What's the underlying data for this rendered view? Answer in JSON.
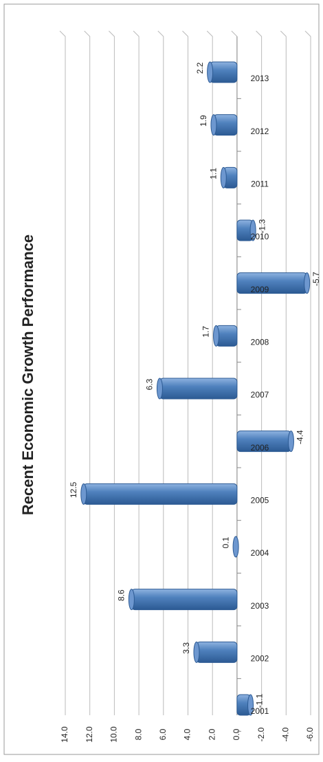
{
  "chart_data": {
    "type": "bar",
    "orientation": "rotated",
    "title": "Recent Economic Growth Performance",
    "categories": [
      "2001",
      "2002",
      "2003",
      "2004",
      "2005",
      "2006",
      "2007",
      "2008",
      "2009",
      "2010",
      "2011",
      "2012",
      "2013"
    ],
    "values": [
      -1.1,
      3.3,
      8.6,
      0.1,
      12.5,
      -4.4,
      6.3,
      1.7,
      -5.7,
      -1.3,
      1.1,
      1.9,
      2.2
    ],
    "color": "#4f81bd",
    "ylim": [
      -6,
      14
    ],
    "yticks": [
      {
        "value": -6,
        "label": "-6.0"
      },
      {
        "value": -4,
        "label": "-4.0"
      },
      {
        "value": -2,
        "label": "-2.0"
      },
      {
        "value": 0,
        "label": "0.0"
      },
      {
        "value": 2,
        "label": "2.0"
      },
      {
        "value": 4,
        "label": "4.0"
      },
      {
        "value": 6,
        "label": "6.0"
      },
      {
        "value": 8,
        "label": "8.0"
      },
      {
        "value": 10,
        "label": "10.0"
      },
      {
        "value": 12,
        "label": "12.0"
      },
      {
        "value": 14,
        "label": "14.0"
      }
    ],
    "grid": true
  }
}
